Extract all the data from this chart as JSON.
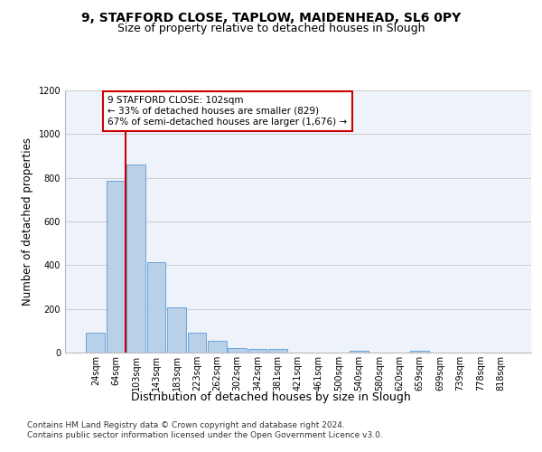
{
  "title1": "9, STAFFORD CLOSE, TAPLOW, MAIDENHEAD, SL6 0PY",
  "title2": "Size of property relative to detached houses in Slough",
  "xlabel": "Distribution of detached houses by size in Slough",
  "ylabel": "Number of detached properties",
  "categories": [
    "24sqm",
    "64sqm",
    "103sqm",
    "143sqm",
    "183sqm",
    "223sqm",
    "262sqm",
    "302sqm",
    "342sqm",
    "381sqm",
    "421sqm",
    "461sqm",
    "500sqm",
    "540sqm",
    "580sqm",
    "620sqm",
    "659sqm",
    "699sqm",
    "739sqm",
    "778sqm",
    "818sqm"
  ],
  "values": [
    90,
    785,
    860,
    415,
    205,
    90,
    52,
    22,
    15,
    15,
    0,
    0,
    0,
    10,
    0,
    0,
    10,
    0,
    0,
    0,
    0
  ],
  "bar_color": "#b8d0e8",
  "bar_edge_color": "#5b9bd5",
  "highlight_index": 2,
  "highlight_line_color": "#cc0000",
  "annotation_box_text": "9 STAFFORD CLOSE: 102sqm\n← 33% of detached houses are smaller (829)\n67% of semi-detached houses are larger (1,676) →",
  "annotation_box_color": "#cc0000",
  "ylim": [
    0,
    1200
  ],
  "yticks": [
    0,
    200,
    400,
    600,
    800,
    1000,
    1200
  ],
  "grid_color": "#cccccc",
  "background_color": "#eef2fb",
  "footer1": "Contains HM Land Registry data © Crown copyright and database right 2024.",
  "footer2": "Contains public sector information licensed under the Open Government Licence v3.0.",
  "title1_fontsize": 10,
  "title2_fontsize": 9,
  "xlabel_fontsize": 9,
  "ylabel_fontsize": 8.5,
  "tick_fontsize": 7,
  "footer_fontsize": 6.5,
  "ann_fontsize": 7.5
}
